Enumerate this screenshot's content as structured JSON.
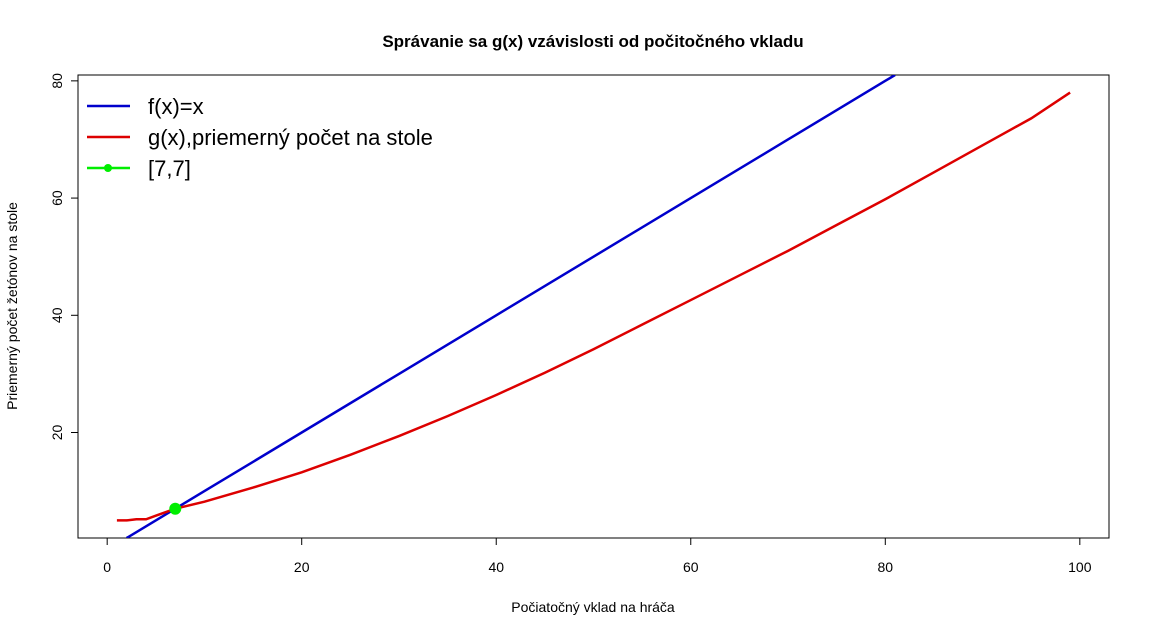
{
  "chart_data": {
    "type": "line",
    "title": "Správanie sa g(x) vzávislosti od počitočného vkladu",
    "xlabel": "Počiatočný vklad na hráča",
    "ylabel": "Priemerný počet žetónov na stole",
    "xlim": [
      -3,
      103
    ],
    "ylim": [
      2,
      81
    ],
    "xticks": [
      0,
      20,
      40,
      60,
      80,
      100
    ],
    "yticks": [
      20,
      40,
      60,
      80
    ],
    "grid": false,
    "legend_position": "top-left",
    "series": [
      {
        "name": "f(x)=x",
        "color": "#0000cc",
        "x": [
          2,
          10,
          20,
          30,
          40,
          50,
          60,
          70,
          80,
          81
        ],
        "y": [
          2,
          10,
          20,
          30,
          40,
          50,
          60,
          70,
          80,
          81
        ]
      },
      {
        "name": "g(x),priemerný počet na stole",
        "color": "#dd0000",
        "x": [
          1,
          2,
          3,
          4,
          5,
          7,
          10,
          15,
          20,
          25,
          30,
          35,
          40,
          45,
          50,
          55,
          60,
          65,
          70,
          75,
          80,
          85,
          90,
          95,
          99
        ],
        "y": [
          5.0,
          5.0,
          5.2,
          5.2,
          5.8,
          7.0,
          8.2,
          10.6,
          13.2,
          16.2,
          19.4,
          22.8,
          26.4,
          30.2,
          34.2,
          38.4,
          42.6,
          46.8,
          51.0,
          55.4,
          59.8,
          64.4,
          69.0,
          73.6,
          78.0
        ]
      },
      {
        "name": "[7,7]",
        "color": "#00ee00",
        "x": [
          7
        ],
        "y": [
          7
        ]
      }
    ]
  }
}
